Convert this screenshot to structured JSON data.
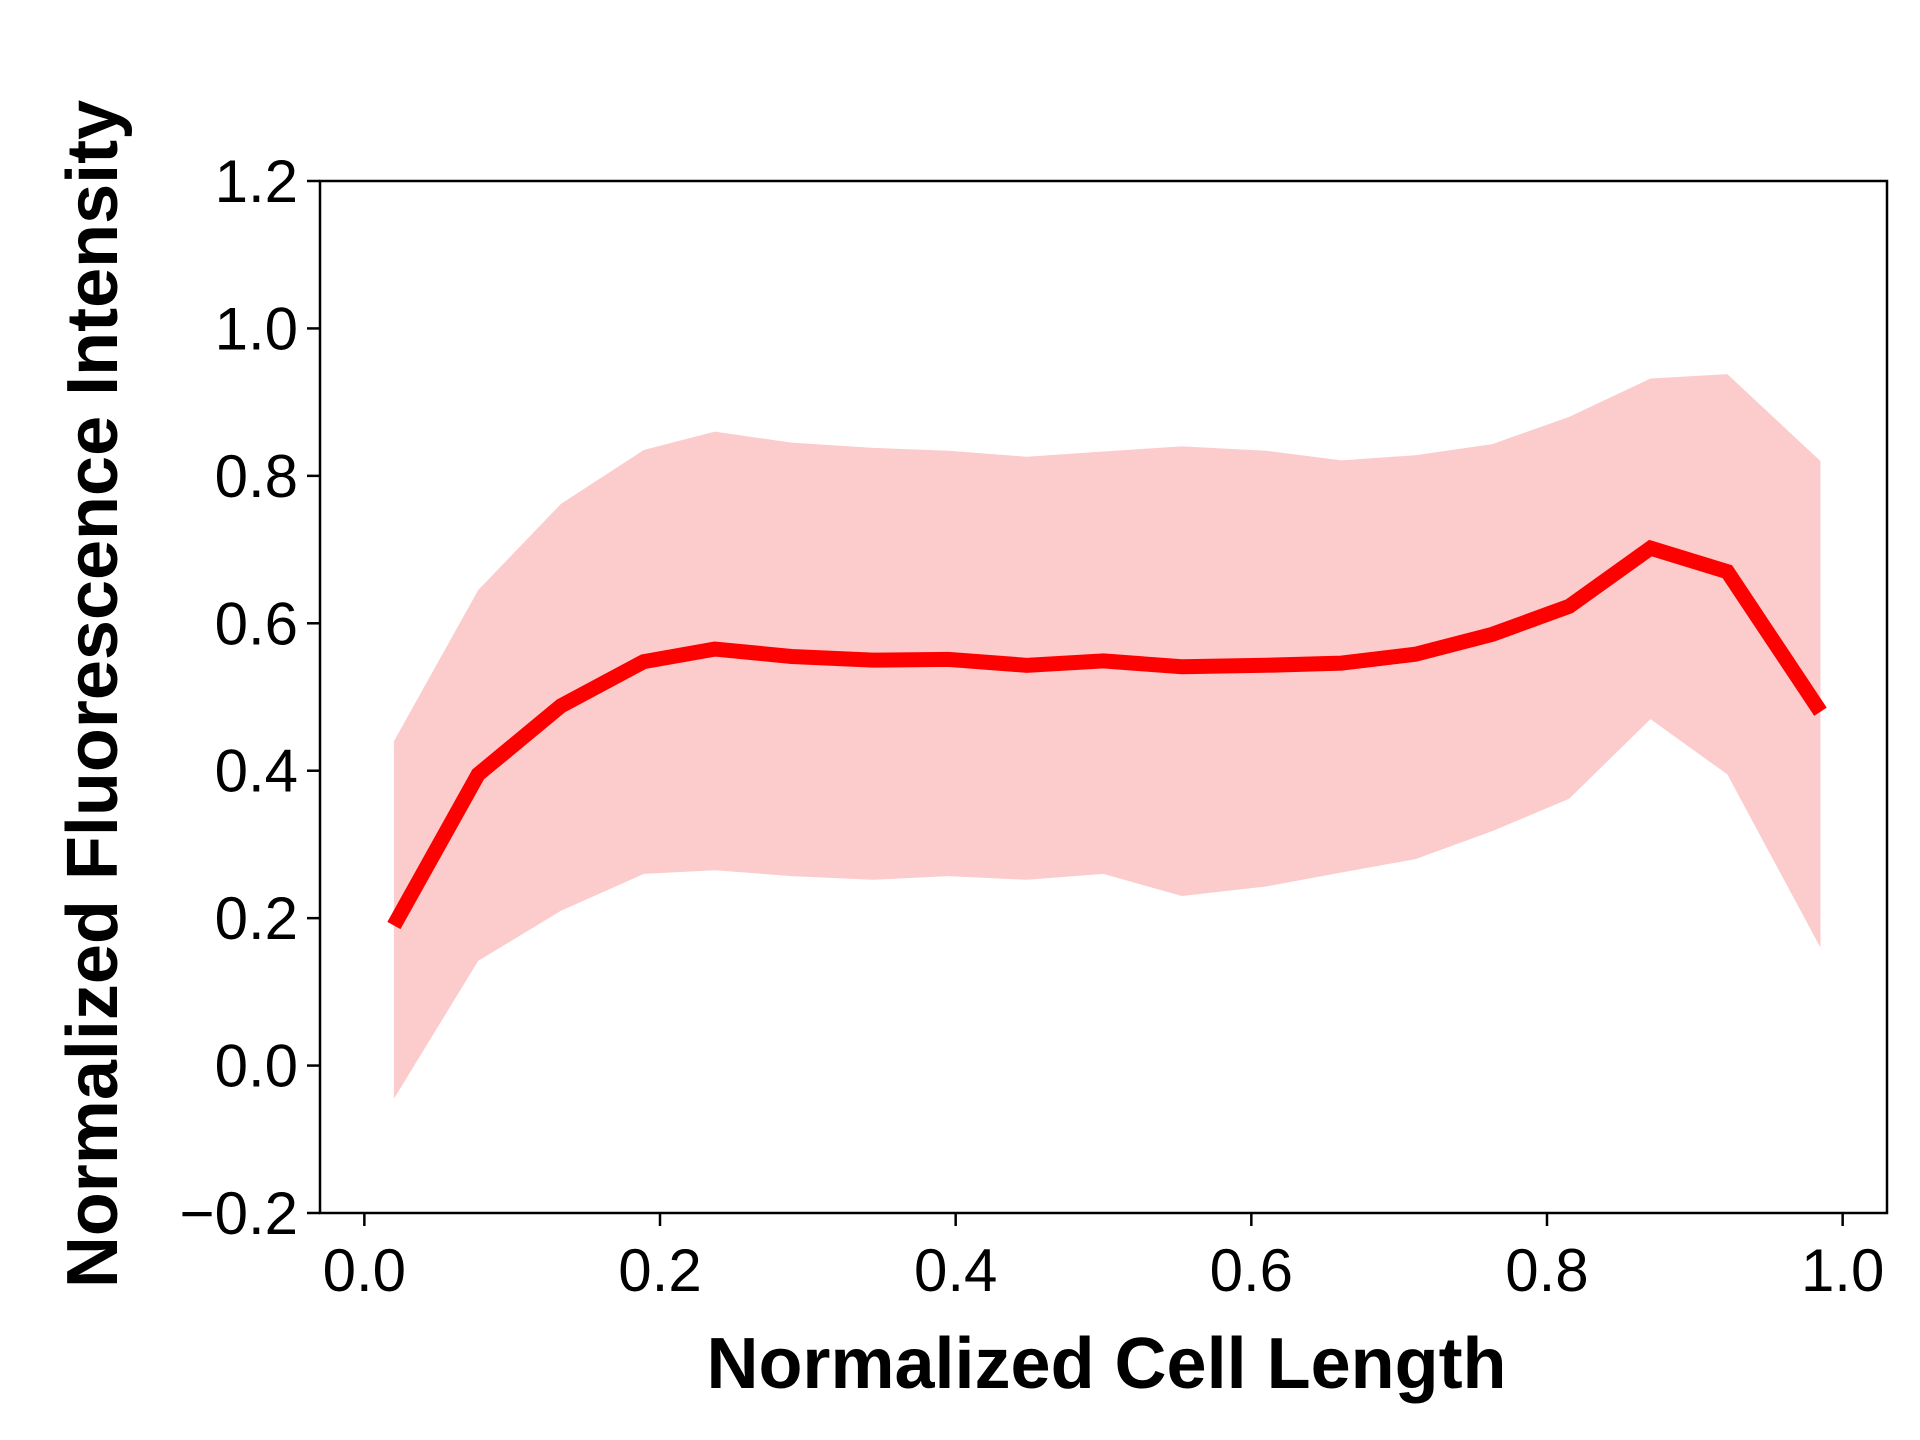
{
  "chart_data": {
    "type": "line",
    "xlabel": "Normalized Cell Length",
    "ylabel": "Normalized Fluorescence Intensity",
    "xlim": [
      -0.03,
      1.03
    ],
    "ylim": [
      -0.2,
      1.2
    ],
    "xticks": [
      0.0,
      0.2,
      0.4,
      0.6,
      0.8,
      1.0
    ],
    "xtick_labels": [
      "0.0",
      "0.2",
      "0.4",
      "0.6",
      "0.8",
      "1.0"
    ],
    "yticks": [
      -0.2,
      0.0,
      0.2,
      0.4,
      0.6,
      0.8,
      1.0,
      1.2
    ],
    "ytick_labels": [
      "−0.2",
      "0.0",
      "0.2",
      "0.4",
      "0.6",
      "0.8",
      "1.0",
      "1.2"
    ],
    "grid": false,
    "legend": false,
    "series": [
      {
        "type": "line",
        "color": "#ff0000",
        "x": [
          0.02,
          0.077,
          0.133,
          0.189,
          0.237,
          0.289,
          0.344,
          0.395,
          0.448,
          0.5,
          0.553,
          0.61,
          0.661,
          0.711,
          0.763,
          0.815,
          0.87,
          0.922,
          0.985
        ],
        "y": [
          0.19,
          0.395,
          0.488,
          0.548,
          0.565,
          0.555,
          0.55,
          0.551,
          0.543,
          0.549,
          0.541,
          0.543,
          0.546,
          0.558,
          0.585,
          0.623,
          0.702,
          0.67,
          0.48
        ]
      },
      {
        "type": "band",
        "color": "#fccbcb",
        "x": [
          0.02,
          0.077,
          0.133,
          0.189,
          0.237,
          0.289,
          0.344,
          0.395,
          0.448,
          0.5,
          0.553,
          0.61,
          0.661,
          0.711,
          0.763,
          0.815,
          0.87,
          0.922,
          0.985
        ],
        "upper": [
          0.44,
          0.645,
          0.762,
          0.835,
          0.86,
          0.845,
          0.838,
          0.834,
          0.826,
          0.833,
          0.84,
          0.834,
          0.821,
          0.828,
          0.843,
          0.88,
          0.932,
          0.938,
          0.82
        ],
        "lower": [
          -0.045,
          0.142,
          0.21,
          0.26,
          0.265,
          0.257,
          0.252,
          0.257,
          0.252,
          0.26,
          0.23,
          0.243,
          0.262,
          0.28,
          0.318,
          0.362,
          0.47,
          0.395,
          0.16
        ]
      }
    ]
  }
}
